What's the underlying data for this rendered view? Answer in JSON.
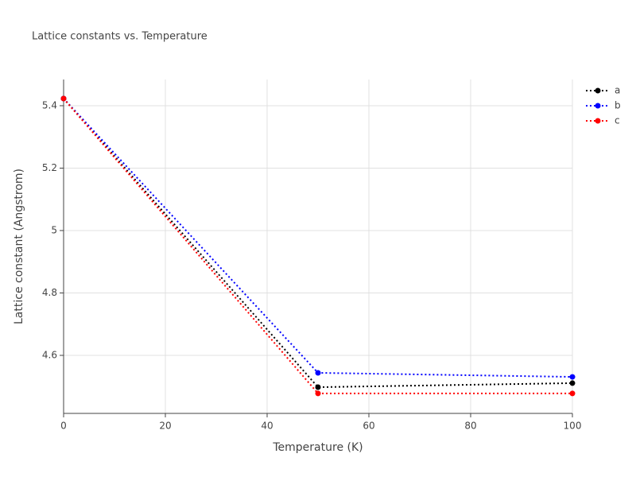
{
  "chart_data": {
    "type": "line",
    "title": "Lattice constants vs. Temperature",
    "x_label": "Temperature (K)",
    "y_label": "Lattice constant (Angstrom)",
    "x": [
      0,
      50,
      100
    ],
    "series": [
      {
        "name": "a",
        "color": "#000000",
        "values": [
          5.423,
          4.498,
          4.511
        ]
      },
      {
        "name": "b",
        "color": "#0000ff",
        "values": [
          5.423,
          4.544,
          4.531
        ]
      },
      {
        "name": "c",
        "color": "#ff0000",
        "values": [
          5.423,
          4.478,
          4.478
        ]
      }
    ],
    "xlim": [
      0,
      100
    ],
    "xticks": [
      0,
      20,
      40,
      60,
      80,
      100
    ],
    "ylim": [
      4.414,
      5.484
    ],
    "yticks": [
      4.6,
      4.8,
      5,
      5.2,
      5.4
    ],
    "grid": true,
    "legend": "top-right"
  }
}
